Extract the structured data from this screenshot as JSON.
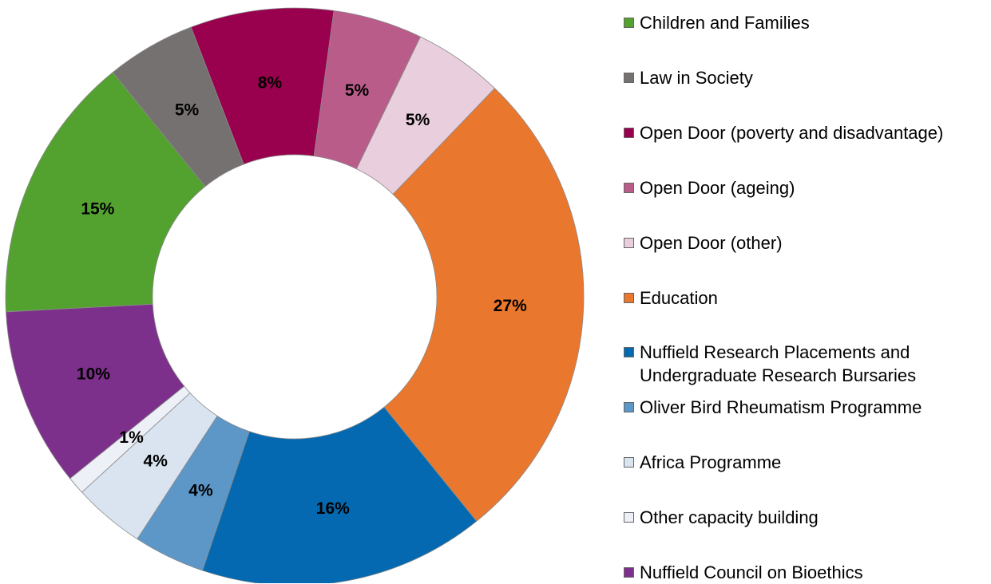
{
  "chart_data": {
    "type": "pie",
    "title": "",
    "donut": true,
    "legend_position": "right",
    "slices": [
      {
        "label": "Children and Families",
        "value": 15,
        "value_label": "15%",
        "color": "#53A22F"
      },
      {
        "label": "Law in Society",
        "value": 5,
        "value_label": "5%",
        "color": "#767171"
      },
      {
        "label": "Open Door (poverty and disadvantage)",
        "value": 8,
        "value_label": "8%",
        "color": "#99004D"
      },
      {
        "label": "Open Door (ageing)",
        "value": 5,
        "value_label": "5%",
        "color": "#BA5C8A"
      },
      {
        "label": "Open Door (other)",
        "value": 5,
        "value_label": "5%",
        "color": "#E9CFDD"
      },
      {
        "label": "Education",
        "value": 27,
        "value_label": "27%",
        "color": "#EA772E"
      },
      {
        "label": "Nuffield Research Placements and\nUndergraduate Research Bursaries",
        "value": 16,
        "value_label": "16%",
        "color": "#0469B0"
      },
      {
        "label": "Oliver Bird Rheumatism Programme",
        "value": 4,
        "value_label": "4%",
        "color": "#5C97C8"
      },
      {
        "label": "Africa Programme",
        "value": 4,
        "value_label": "4%",
        "color": "#D9E4F0"
      },
      {
        "label": "Other capacity building",
        "value": 1,
        "value_label": "1%",
        "color": "#EEF0F8"
      },
      {
        "label": "Nuffield Council on Bioethics",
        "value": 10,
        "value_label": "10%",
        "color": "#7D2F8C"
      }
    ]
  }
}
